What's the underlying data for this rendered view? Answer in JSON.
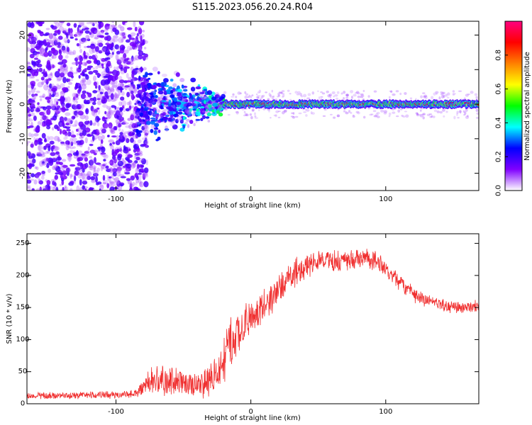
{
  "title": "S115.2023.056.20.24.R04",
  "spectrogram": {
    "xlabel": "Height of straight line (km)",
    "ylabel": "Frequency (Hz)",
    "xlim": [
      -166,
      169
    ],
    "ylim": [
      -25,
      24
    ],
    "xticks": [
      -100,
      0,
      100
    ],
    "yticks": [
      -20,
      -10,
      0,
      10,
      20
    ],
    "colorbar": {
      "label": "Normalized spectral amplitude",
      "range": [
        0,
        1
      ],
      "ticks": [
        "0.0",
        "0.2",
        "0.4",
        "0.6",
        "0.8"
      ],
      "colors": [
        "#ffffff",
        "#8000ff",
        "#0000ff",
        "#00ffff",
        "#00ff00",
        "#ffff00",
        "#ff8000",
        "#ff0000",
        "#ff0080"
      ]
    }
  },
  "snr": {
    "xlabel": "Height of straight line (km)",
    "ylabel": "SNR (10 * v/v)",
    "xlim": [
      -166,
      169
    ],
    "ylim": [
      0,
      265
    ],
    "xticks": [
      -100,
      0,
      100
    ],
    "yticks": [
      0,
      50,
      100,
      150,
      200,
      250
    ],
    "color": "#f03030"
  },
  "chart_data": [
    {
      "type": "heatmap",
      "title": "S115.2023.056.20.24.R04",
      "xlabel": "Height of straight line (km)",
      "ylabel": "Frequency (Hz)",
      "xlim": [
        -166,
        169
      ],
      "ylim": [
        -25,
        24
      ],
      "colorbar_label": "Normalized spectral amplitude",
      "colorbar_range": [
        0,
        1
      ],
      "features": {
        "noise_region_x": [
          -166,
          -85
        ],
        "transition_region_x": [
          -85,
          -20
        ],
        "carrier_line_x": [
          -20,
          169
        ],
        "carrier_frequency_hz": 0,
        "carrier_amplitude": 0.85
      }
    },
    {
      "type": "line",
      "xlabel": "Height of straight line (km)",
      "ylabel": "SNR (10 * v/v)",
      "xlim": [
        -166,
        169
      ],
      "ylim": [
        0,
        265
      ],
      "envelope": {
        "x": [
          -166,
          -100,
          -85,
          -75,
          -65,
          -55,
          -45,
          -35,
          -25,
          -15,
          -5,
          5,
          15,
          25,
          35,
          45,
          55,
          65,
          75,
          85,
          95,
          105,
          115,
          125,
          135,
          145,
          155,
          169
        ],
        "y": [
          12,
          14,
          16,
          35,
          38,
          33,
          30,
          32,
          45,
          95,
          125,
          140,
          165,
          190,
          210,
          220,
          225,
          222,
          225,
          228,
          220,
          200,
          180,
          165,
          158,
          152,
          150,
          152
        ],
        "amp": [
          5,
          5,
          6,
          18,
          22,
          20,
          18,
          22,
          28,
          35,
          28,
          22,
          22,
          20,
          20,
          18,
          15,
          15,
          14,
          14,
          13,
          12,
          11,
          10,
          9,
          9,
          9,
          9
        ]
      }
    }
  ]
}
